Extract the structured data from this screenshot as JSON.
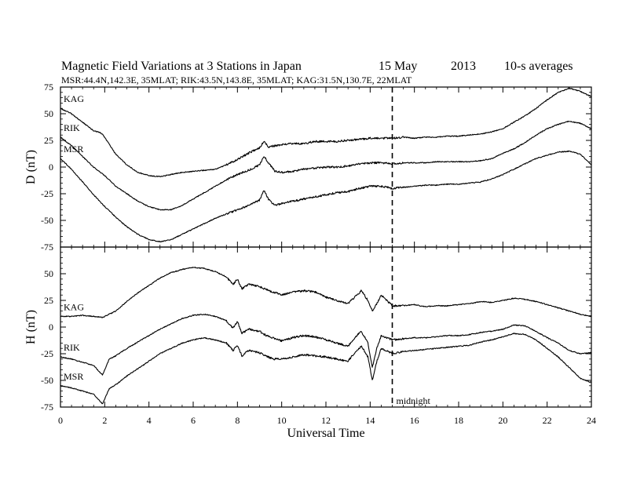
{
  "header": {
    "title_main": "Magnetic Field Variations at 3 Stations in Japan",
    "title_date": "15 May",
    "title_year": "2013",
    "title_avg": "10-s averages",
    "subtitle": "MSR:44.4N,142.3E, 35MLAT;  RIK:43.5N,143.8E, 35MLAT;  KAG:31.5N,130.7E, 22MLAT"
  },
  "chart_data": {
    "type": "line",
    "xlabel": "Universal Time",
    "xlim": [
      0,
      24
    ],
    "xticks": [
      0,
      2,
      4,
      6,
      8,
      10,
      12,
      14,
      16,
      18,
      20,
      22,
      24
    ],
    "marker": {
      "x": 15,
      "label": "midnight",
      "style": "dashed"
    },
    "panels": [
      {
        "ylabel": "D (nT)",
        "ylim": [
          -75,
          75
        ],
        "yticks": [
          75,
          50,
          25,
          0,
          -25,
          -50,
          -75
        ],
        "series": [
          {
            "name": "KAG",
            "x": [
              0,
              0.5,
              1,
              1.5,
              1.7,
              1.9,
              2.5,
              3,
              3.5,
              4,
              4.5,
              5,
              5.5,
              6,
              6.5,
              7,
              7.5,
              8,
              8.5,
              9,
              9.2,
              9.4,
              9.7,
              10,
              10.5,
              11,
              11.5,
              12,
              12.5,
              13,
              13.5,
              14,
              14.5,
              15,
              15.5,
              16,
              16.5,
              17,
              17.5,
              18,
              18.5,
              19,
              19.5,
              20,
              20.5,
              21,
              21.5,
              22,
              22.5,
              23,
              23.5,
              24
            ],
            "y": [
              55,
              50,
              42,
              34,
              33,
              31,
              12,
              2,
              -5,
              -8,
              -9,
              -7,
              -5,
              -4,
              -3,
              -2,
              2,
              7,
              13,
              18,
              24,
              19,
              20,
              21,
              22,
              22,
              24,
              24,
              24,
              25,
              26,
              27,
              27,
              27,
              28,
              27,
              28,
              28,
              29,
              29,
              30,
              31,
              33,
              36,
              42,
              48,
              55,
              63,
              70,
              74,
              71,
              66
            ]
          },
          {
            "name": "RIK",
            "x": [
              0,
              0.5,
              1,
              1.5,
              2,
              2.5,
              3,
              3.5,
              4,
              4.5,
              5,
              5.5,
              6,
              6.5,
              7,
              7.5,
              8,
              8.5,
              9,
              9.2,
              9.4,
              9.7,
              10,
              10.5,
              11,
              11.5,
              12,
              12.5,
              13,
              13.5,
              14,
              14.5,
              15,
              15.5,
              16,
              16.5,
              17,
              17.5,
              18,
              18.5,
              19,
              19.5,
              20,
              20.5,
              21,
              21.5,
              22,
              22.5,
              23,
              23.5,
              24
            ],
            "y": [
              28,
              20,
              10,
              0,
              -8,
              -18,
              -25,
              -32,
              -37,
              -40,
              -40,
              -36,
              -30,
              -24,
              -18,
              -12,
              -7,
              -3,
              2,
              10,
              4,
              -4,
              -5,
              -4,
              -2,
              -1,
              0,
              0,
              1,
              3,
              4,
              4,
              3,
              4,
              4,
              4,
              5,
              5,
              5,
              5,
              6,
              8,
              13,
              17,
              23,
              30,
              36,
              40,
              43,
              41,
              36
            ]
          },
          {
            "name": "MSR",
            "x": [
              0,
              0.5,
              1,
              1.5,
              2,
              2.5,
              3,
              3.5,
              4,
              4.5,
              5,
              5.5,
              6,
              6.5,
              7,
              7.5,
              8,
              8.5,
              9,
              9.2,
              9.4,
              9.7,
              10,
              10.5,
              11,
              11.5,
              12,
              12.5,
              13,
              13.5,
              14,
              14.5,
              15,
              15.5,
              16,
              16.5,
              17,
              17.5,
              18,
              18.5,
              19,
              19.5,
              20,
              20.5,
              21,
              21.5,
              22,
              22.5,
              23,
              23.5,
              24
            ],
            "y": [
              8,
              -2,
              -14,
              -26,
              -37,
              -47,
              -56,
              -63,
              -68,
              -70,
              -68,
              -63,
              -58,
              -53,
              -48,
              -44,
              -40,
              -36,
              -31,
              -22,
              -30,
              -36,
              -34,
              -32,
              -30,
              -28,
              -26,
              -24,
              -23,
              -20,
              -18,
              -18,
              -20,
              -19,
              -18,
              -17,
              -17,
              -16,
              -16,
              -15,
              -14,
              -11,
              -7,
              -2,
              3,
              8,
              11,
              14,
              15,
              12,
              2
            ]
          }
        ]
      },
      {
        "ylabel": "H (nT)",
        "ylim": [
          -75,
          75
        ],
        "yticks": [
          75,
          50,
          25,
          0,
          -25,
          -50,
          -75
        ],
        "series": [
          {
            "name": "KAG",
            "x": [
              0,
              0.5,
              1,
              1.5,
              1.9,
              2.5,
              3,
              3.5,
              4,
              4.5,
              5,
              5.5,
              6,
              6.5,
              7,
              7.5,
              7.8,
              8,
              8.2,
              8.5,
              9,
              9.3,
              9.6,
              10,
              10.5,
              11,
              11.5,
              12,
              12.5,
              13,
              13.3,
              13.6,
              13.9,
              14.1,
              14.3,
              14.5,
              15,
              15.5,
              16,
              16.5,
              17,
              17.5,
              18,
              18.5,
              19,
              19.5,
              20,
              20.5,
              21,
              21.5,
              22,
              22.5,
              23,
              23.5,
              24
            ],
            "y": [
              10,
              10,
              11,
              10,
              9,
              15,
              24,
              32,
              39,
              46,
              51,
              54,
              56,
              55,
              52,
              47,
              40,
              45,
              36,
              40,
              38,
              35,
              33,
              30,
              33,
              34,
              33,
              28,
              25,
              22,
              28,
              34,
              25,
              15,
              22,
              30,
              20,
              20,
              21,
              19,
              20,
              20,
              21,
              22,
              24,
              23,
              25,
              27,
              26,
              24,
              21,
              18,
              15,
              12,
              10
            ]
          },
          {
            "name": "RIK",
            "x": [
              0,
              0.5,
              1,
              1.5,
              1.9,
              2.2,
              2.5,
              3,
              3.5,
              4,
              4.5,
              5,
              5.5,
              6,
              6.5,
              7,
              7.5,
              7.8,
              8,
              8.2,
              8.5,
              9,
              9.3,
              9.6,
              10,
              10.5,
              11,
              11.5,
              12,
              12.5,
              13,
              13.3,
              13.6,
              13.9,
              14.1,
              14.3,
              14.5,
              15,
              15.5,
              16,
              16.5,
              17,
              17.5,
              18,
              18.5,
              19,
              19.5,
              20,
              20.5,
              21,
              21.5,
              22,
              22.5,
              23,
              23.5,
              24
            ],
            "y": [
              -28,
              -30,
              -33,
              -36,
              -45,
              -30,
              -27,
              -20,
              -14,
              -8,
              -2,
              3,
              8,
              11,
              12,
              10,
              6,
              -1,
              5,
              -6,
              -2,
              -4,
              -8,
              -10,
              -13,
              -10,
              -8,
              -9,
              -12,
              -15,
              -18,
              -10,
              -4,
              -15,
              -38,
              -20,
              -8,
              -12,
              -11,
              -10,
              -10,
              -9,
              -8,
              -8,
              -7,
              -5,
              -4,
              -2,
              2,
              1,
              -4,
              -10,
              -15,
              -22,
              -25,
              -24
            ]
          },
          {
            "name": "MSR",
            "x": [
              0,
              0.5,
              1,
              1.5,
              1.9,
              2.2,
              2.5,
              3,
              3.5,
              4,
              4.5,
              5,
              5.5,
              6,
              6.5,
              7,
              7.5,
              7.8,
              8,
              8.2,
              8.5,
              9,
              9.3,
              9.6,
              10,
              10.5,
              11,
              11.5,
              12,
              12.5,
              13,
              13.3,
              13.6,
              13.9,
              14.1,
              14.3,
              14.5,
              15,
              15.5,
              16,
              16.5,
              17,
              17.5,
              18,
              18.5,
              19,
              19.5,
              20,
              20.5,
              21,
              21.5,
              22,
              22.5,
              23,
              23.5,
              24
            ],
            "y": [
              -55,
              -57,
              -60,
              -63,
              -72,
              -58,
              -54,
              -46,
              -39,
              -32,
              -25,
              -20,
              -15,
              -12,
              -10,
              -12,
              -15,
              -22,
              -17,
              -27,
              -22,
              -24,
              -27,
              -30,
              -30,
              -28,
              -26,
              -27,
              -28,
              -30,
              -32,
              -24,
              -18,
              -28,
              -50,
              -32,
              -20,
              -25,
              -23,
              -22,
              -21,
              -20,
              -19,
              -18,
              -17,
              -14,
              -12,
              -9,
              -6,
              -7,
              -12,
              -20,
              -28,
              -38,
              -48,
              -52
            ]
          }
        ]
      }
    ]
  }
}
